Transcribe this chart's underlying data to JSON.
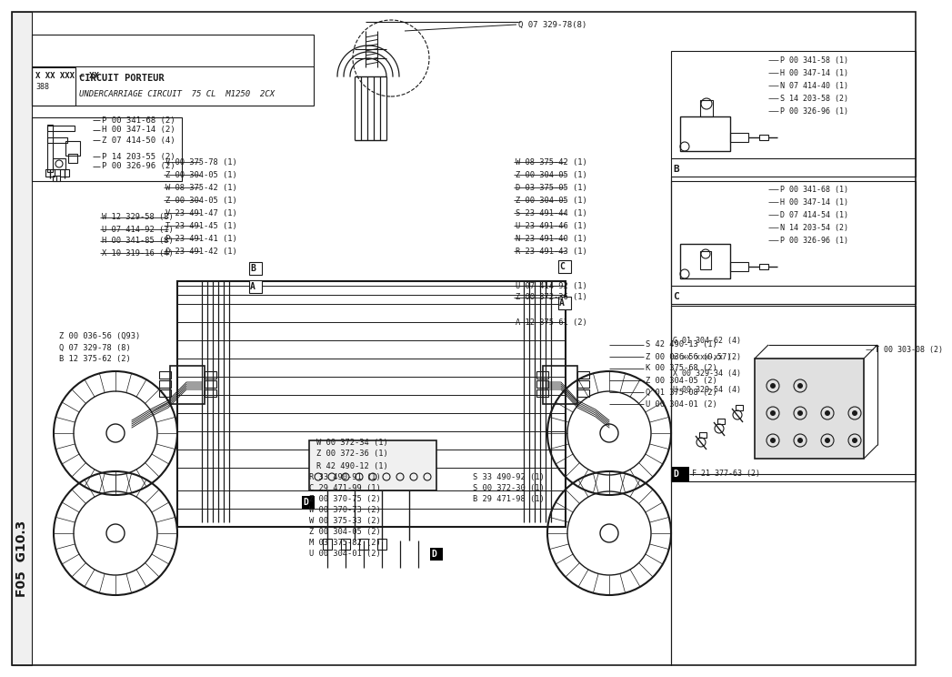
{
  "bg_color": "#ffffff",
  "line_color": "#1a1a1a",
  "title_bottom_left": "F05  G10.3",
  "label_box1": "X XX XXX – XX",
  "label_box2_fr": "CIRCUIT PORTEUR",
  "label_box2_en": "UNDERCARRIAGE CIRCUIT  75 CL  M1250  2CX",
  "page_num": "388",
  "center_top_label": "Q 07 329-78(8)",
  "left_labels_group1": [
    "V 00 375-78 (1)",
    "Z 00 304-05 (1)",
    "W 08 375-42 (1)",
    "Z 00 304-05 (1)",
    "V 23 491-47 (1)",
    "T 23 491-45 (1)",
    "P 23 491-41 (1)",
    "Q 23 491-42 (1)"
  ],
  "left_top_part_labels": [
    "P 00 341-68 (2)",
    "H 00 347-14 (2)",
    "Z 07 414-50 (4)"
  ],
  "left_lower_part_labels": [
    "P 14 203-55 (2)",
    "P 00 326-96 (2)"
  ],
  "left_mid_labels": [
    "W 12 329-58 (8)",
    "U 07 414-92 (1)",
    "H 00 341-85 (8)",
    "X 10 319-16 (4)"
  ],
  "left_lower_labels": [
    "Z 00 036-56 (Q93)",
    "Q 07 329-78 (8)",
    "B 12 375-62 (2)"
  ],
  "right_labels_upper": [
    "W 08 375-42 (1)",
    "Z 00 304-05 (1)",
    "D 03 375-05 (1)",
    "Z 00 304-05 (1)",
    "S 23 491-44 (1)",
    "U 23 491-46 (1)",
    "N 23 491-40 (1)",
    "R 23 491-43 (1)"
  ],
  "right_labels_mid": [
    "U 07 414-92 (1)",
    "Z 00 372-36 (1)"
  ],
  "right_labels_lower": [
    "A 12 375-61 (2)"
  ],
  "center_mid_labels": [
    "W 00 372-34 (1)",
    "Z 00 372-36 (1)",
    "R 42 490-12 (1)"
  ],
  "bottom_left_labels": [
    "R 33 490-91 (1)",
    "C 29 471-99 (1)",
    "Z 00 370-75 (2)",
    "W 00 370-73 (2)",
    "W 00 375-33 (2)",
    "Z 00 304-05 (2)",
    "M 03 375-82 (2)",
    "U 00 304-01 (2)"
  ],
  "bottom_right_labels": [
    "S 33 490-92 (1)",
    "S 00 372-30 (1)",
    "B 29 471-98 (1)"
  ],
  "right_side_labels": [
    "S 42 490-13 (1)",
    "Z 00 036-56 (0,57)",
    "K 00 375-68 (2)",
    "Z 00 304-05 (2)",
    "Q 01 375-08 (2)",
    "U 00 304-01 (2)"
  ],
  "box_B_labels": [
    "P 00 341-58 (1)",
    "H 00 347-14 (1)",
    "N 07 414-40 (1)",
    "S 14 203-58 (2)",
    "P 00 326-96 (1)"
  ],
  "box_C_labels": [
    "P 00 341-68 (1)",
    "H 00 347-14 (1)",
    "D 07 414-54 (1)",
    "N 14 203-54 (2)",
    "P 00 326-96 (1)"
  ],
  "box_D_labels_left": [
    "G 01 304-62 (4)",
    "x xx xxx-xx (2)",
    "X 00 329-34 (4)",
    "U 00 329-54 (4)"
  ],
  "box_D_bottom_label": "F 21 377-63 (2)",
  "box_D_right_label": "T 00 303-08 (2)"
}
